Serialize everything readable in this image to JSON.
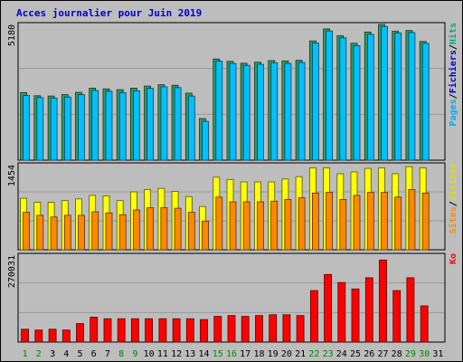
{
  "chart_data": {
    "type": "bar",
    "title": "Acces journalier pour Juin 2019",
    "categories": [
      "1",
      "2",
      "3",
      "4",
      "5",
      "6",
      "7",
      "8",
      "9",
      "10",
      "11",
      "12",
      "13",
      "14",
      "15",
      "16",
      "17",
      "18",
      "19",
      "20",
      "21",
      "22",
      "23",
      "24",
      "25",
      "26",
      "27",
      "28",
      "29",
      "30",
      "31"
    ],
    "weekend_days": [
      "1",
      "2",
      "8",
      "9",
      "15",
      "16",
      "22",
      "23",
      "29",
      "30"
    ],
    "panels": [
      {
        "id": "top",
        "ymax": 5180,
        "ymax_label": "5180",
        "legend": [
          {
            "label": "Pages",
            "color": "#00aaff"
          },
          {
            "label": "/",
            "color": "#000000"
          },
          {
            "label": "Fichiers",
            "color": "#0000cc"
          },
          {
            "label": "/",
            "color": "#000000"
          },
          {
            "label": "Hits",
            "color": "#00aa88"
          }
        ],
        "series": [
          {
            "name": "Hits",
            "color": "#339966",
            "values": [
              2580,
              2460,
              2450,
              2500,
              2590,
              2750,
              2720,
              2690,
              2750,
              2830,
              2880,
              2860,
              2560,
              1590,
              3860,
              3770,
              3700,
              3740,
              3800,
              3790,
              3810,
              4550,
              5010,
              4750,
              4460,
              4890,
              5180,
              4920,
              4950,
              4530,
              0
            ]
          },
          {
            "name": "Pages",
            "color": "#00c0ff",
            "values": [
              2470,
              2390,
              2370,
              2410,
              2500,
              2660,
              2630,
              2580,
              2650,
              2740,
              2800,
              2770,
              2450,
              1480,
              3780,
              3690,
              3620,
              3660,
              3720,
              3690,
              3730,
              4470,
              4930,
              4670,
              4370,
              4800,
              5100,
              4850,
              4870,
              4460,
              0
            ]
          }
        ]
      },
      {
        "id": "middle",
        "ymax": 1454,
        "ymax_label": "1454",
        "legend": [
          {
            "label": "Sites",
            "color": "#ff8800"
          },
          {
            "label": "/",
            "color": "#000000"
          },
          {
            "label": "Visites",
            "color": "#dddd00"
          }
        ],
        "series": [
          {
            "name": "Visites",
            "color": "#ffff00",
            "values": [
              880,
              810,
              810,
              840,
              870,
              930,
              920,
              840,
              990,
              1030,
              1050,
              1000,
              910,
              740,
              1240,
              1200,
              1160,
              1160,
              1160,
              1210,
              1250,
              1400,
              1400,
              1300,
              1330,
              1390,
              1400,
              1300,
              1420,
              1400,
              0
            ]
          },
          {
            "name": "Sites",
            "color": "#ff8800",
            "values": [
              640,
              590,
              560,
              590,
              590,
              650,
              630,
              600,
              680,
              720,
              720,
              710,
              640,
              490,
              900,
              820,
              820,
              820,
              830,
              860,
              890,
              970,
              980,
              860,
              930,
              980,
              980,
              900,
              1030,
              970,
              0
            ]
          }
        ]
      },
      {
        "id": "bottom",
        "ymax": 270031,
        "ymax_label": "270031",
        "legend": [
          {
            "label": "Ko",
            "color": "#ff0000"
          }
        ],
        "series": [
          {
            "name": "Ko",
            "color": "#ff0000",
            "values": [
              40000,
              37500,
              40000,
              37500,
              57500,
              77500,
              72500,
              72500,
              72500,
              72500,
              72500,
              72500,
              72500,
              70000,
              80000,
              82500,
              80000,
              82500,
              85000,
              85000,
              82500,
              160000,
              210000,
              185000,
              165000,
              200000,
              255000,
              160000,
              200000,
              112500,
              0
            ]
          }
        ]
      }
    ]
  }
}
